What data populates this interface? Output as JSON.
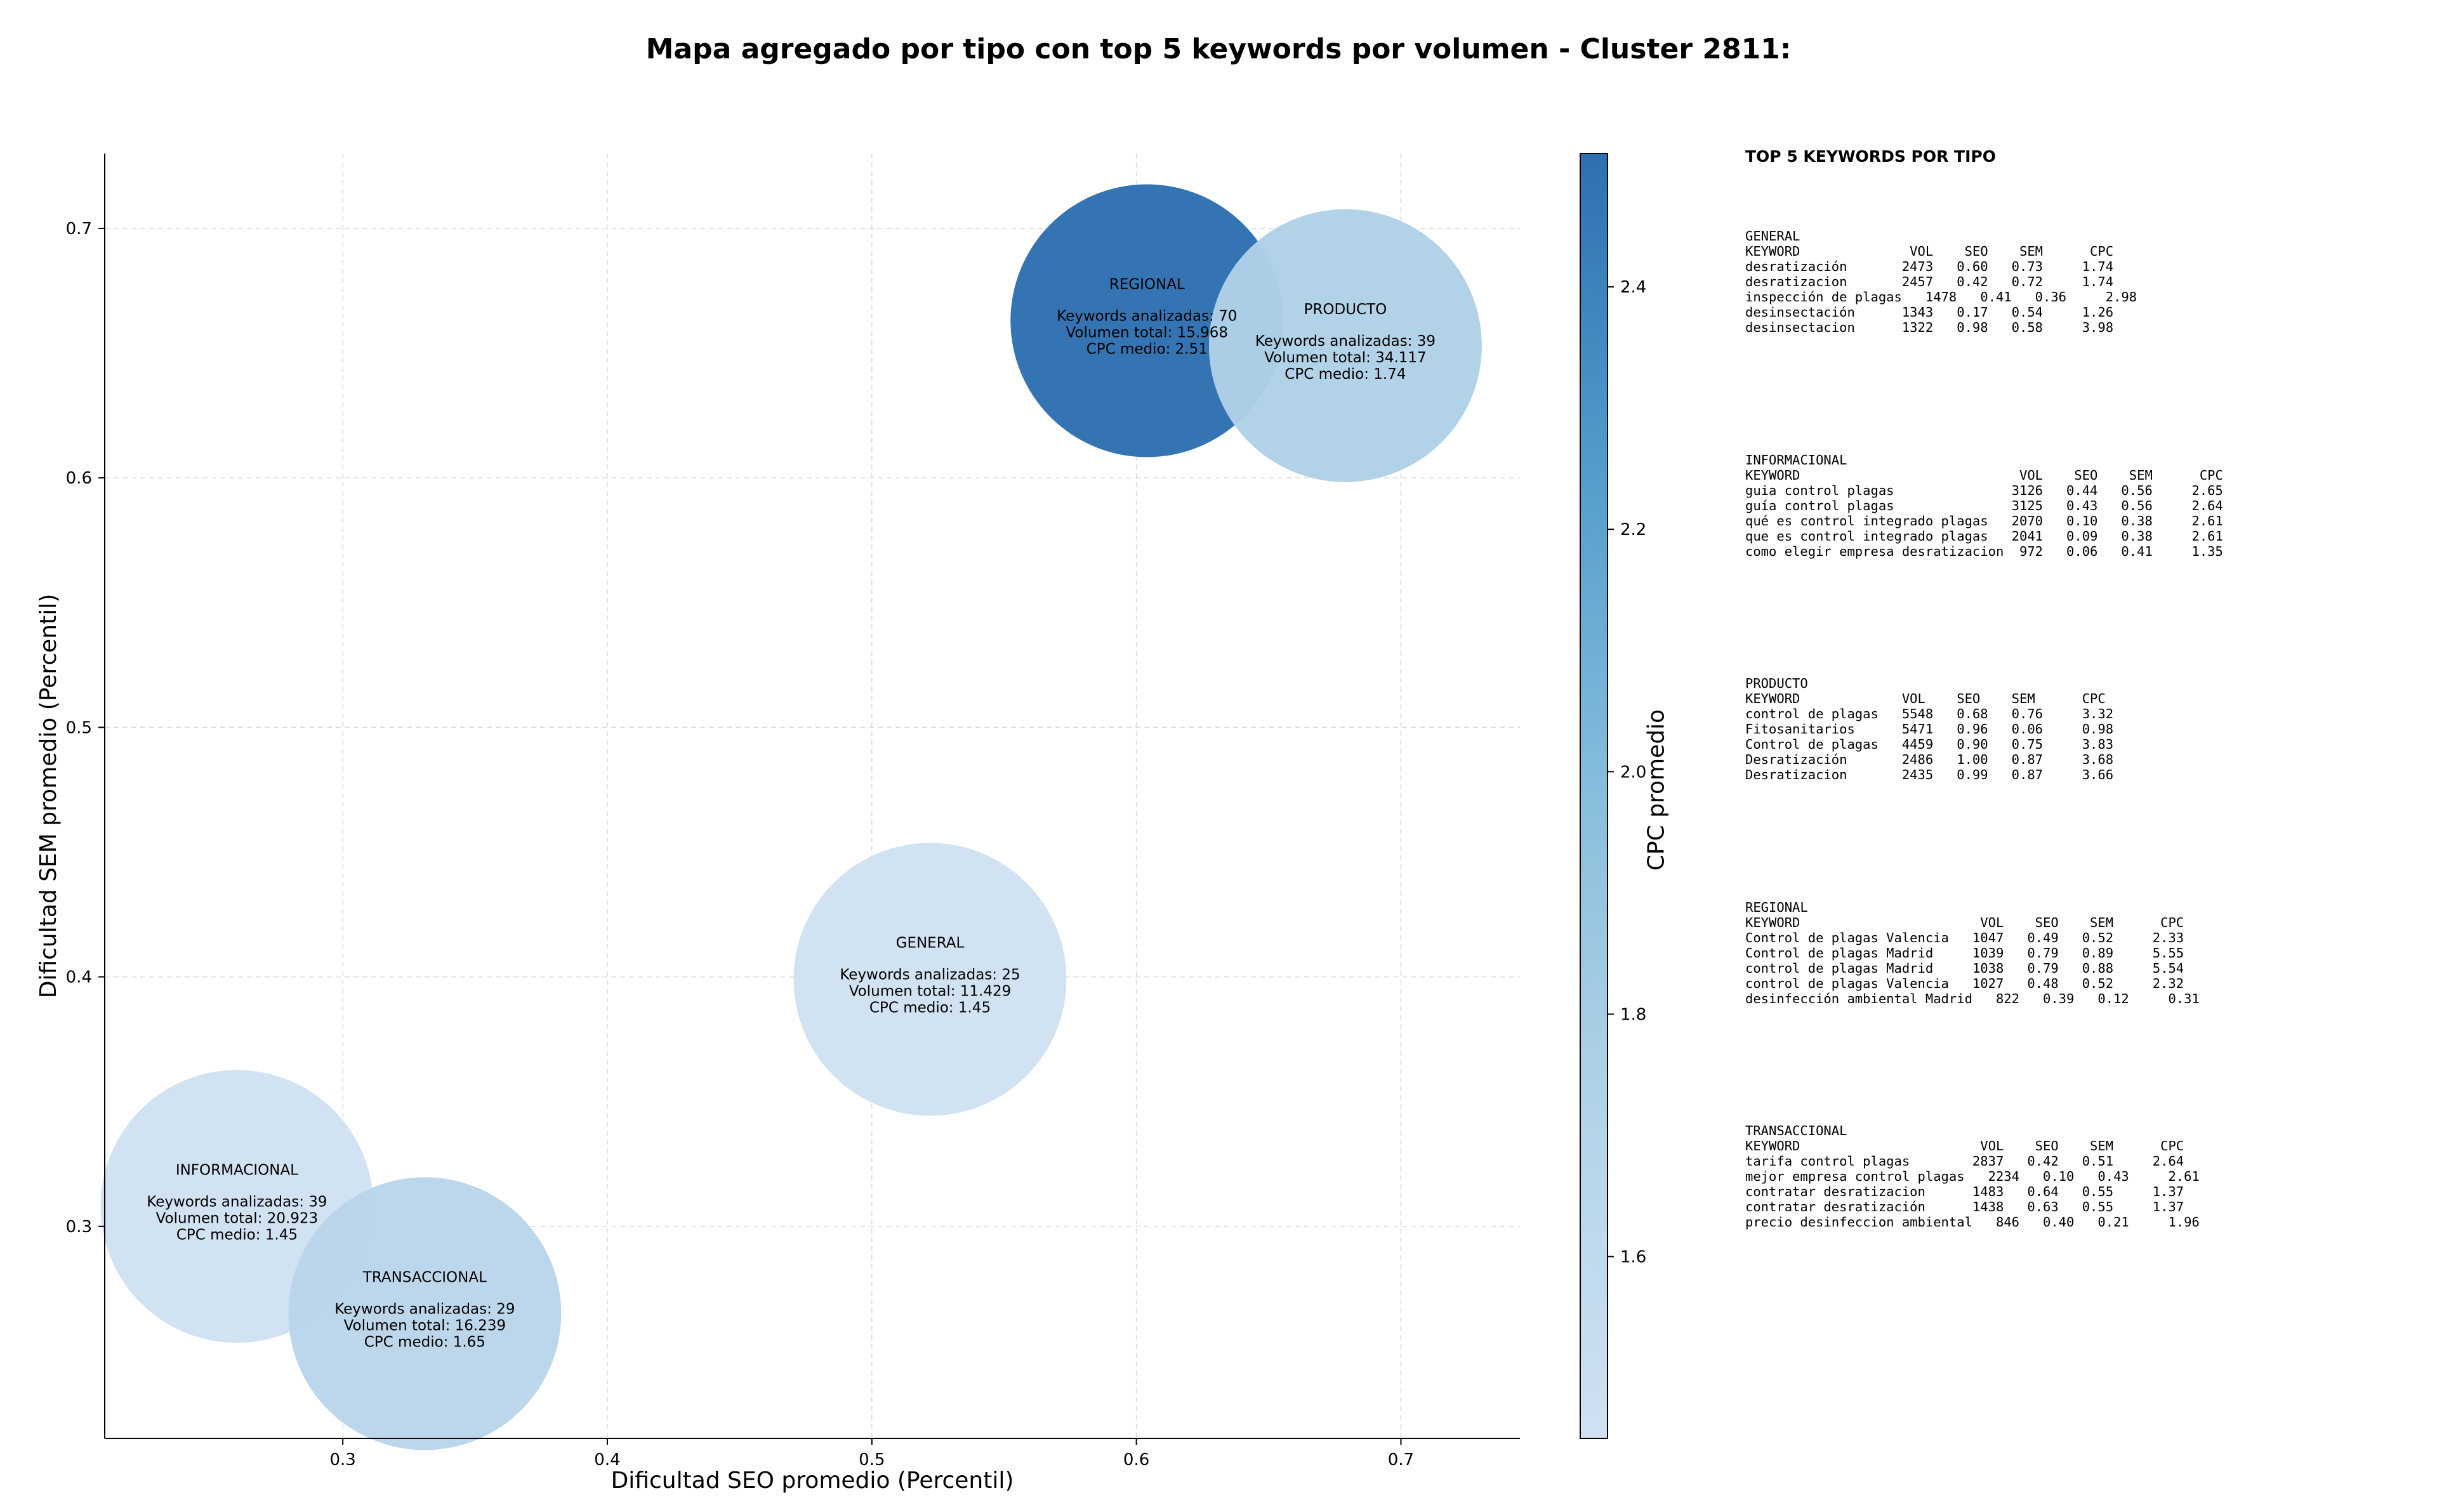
{
  "chart_data": {
    "type": "scatter",
    "title": "Mapa agregado por tipo con top 5 keywords por volumen - Cluster 2811:",
    "xlabel": "Dificultad SEO promedio (Percentil)",
    "ylabel": "Dificultad SEM promedio (Percentil)",
    "xlim": [
      0.21,
      0.745
    ],
    "ylim": [
      0.215,
      0.73
    ],
    "xticks": [
      "0.3",
      "0.4",
      "0.5",
      "0.6",
      "0.7"
    ],
    "yticks": [
      "0.3",
      "0.4",
      "0.5",
      "0.6",
      "0.7"
    ],
    "xtick_values": [
      0.3,
      0.4,
      0.5,
      0.6,
      0.7
    ],
    "ytick_values": [
      0.3,
      0.4,
      0.5,
      0.6,
      0.7
    ],
    "grid": true,
    "colorbar": {
      "label": "CPC promedio",
      "range": [
        1.45,
        2.51
      ],
      "ticks": [
        "1.6",
        "1.8",
        "2.0",
        "2.2",
        "2.4"
      ],
      "tick_values": [
        1.6,
        1.8,
        2.0,
        2.2,
        2.4
      ]
    },
    "bubbles": [
      {
        "name": "REGIONAL",
        "x": 0.604,
        "y": 0.663,
        "cpc": 2.51,
        "lines": [
          "Keywords analizadas: 70",
          "Volumen total: 15.968",
          "CPC medio: 2.51"
        ]
      },
      {
        "name": "PRODUCTO",
        "x": 0.679,
        "y": 0.653,
        "cpc": 1.74,
        "lines": [
          "Keywords analizadas: 39",
          "Volumen total: 34.117",
          "CPC medio: 1.74"
        ]
      },
      {
        "name": "GENERAL",
        "x": 0.522,
        "y": 0.399,
        "cpc": 1.45,
        "lines": [
          "Keywords analizadas: 25",
          "Volumen total: 11.429",
          "CPC medio: 1.45"
        ]
      },
      {
        "name": "INFORMACIONAL",
        "x": 0.26,
        "y": 0.308,
        "cpc": 1.45,
        "lines": [
          "Keywords analizadas: 39",
          "Volumen total: 20.923",
          "CPC medio: 1.45"
        ]
      },
      {
        "name": "TRANSACCIONAL",
        "x": 0.331,
        "y": 0.265,
        "cpc": 1.65,
        "lines": [
          "Keywords analizadas: 29",
          "Volumen total: 16.239",
          "CPC medio: 1.65"
        ]
      }
    ]
  },
  "side_panel": {
    "title": "TOP 5 KEYWORDS POR TIPO",
    "groups": [
      {
        "name": "GENERAL",
        "text": "GENERAL\nKEYWORD              VOL    SEO    SEM      CPC\ndesratización       2473   0.60   0.73     1.74\ndesratizacion       2457   0.42   0.72     1.74\ninspección de plagas   1478   0.41   0.36     2.98\ndesinsectación      1343   0.17   0.54     1.26\ndesinsectacion      1322   0.98   0.58     3.98"
      },
      {
        "name": "INFORMACIONAL",
        "text": "INFORMACIONAL\nKEYWORD                            VOL    SEO    SEM      CPC\nguia control plagas               3126   0.44   0.56     2.65\nguía control plagas               3125   0.43   0.56     2.64\nqué es control integrado plagas   2070   0.10   0.38     2.61\nque es control integrado plagas   2041   0.09   0.38     2.61\ncomo elegir empresa desratizacion  972   0.06   0.41     1.35"
      },
      {
        "name": "PRODUCTO",
        "text": "PRODUCTO\nKEYWORD             VOL    SEO    SEM      CPC\ncontrol de plagas   5548   0.68   0.76     3.32\nFitosanitarios      5471   0.96   0.06     0.98\nControl de plagas   4459   0.90   0.75     3.83\nDesratización       2486   1.00   0.87     3.68\nDesratizacion       2435   0.99   0.87     3.66"
      },
      {
        "name": "REGIONAL",
        "text": "REGIONAL\nKEYWORD                       VOL    SEO    SEM      CPC\nControl de plagas Valencia   1047   0.49   0.52     2.33\nControl de plagas Madrid     1039   0.79   0.89     5.55\ncontrol de plagas Madrid     1038   0.79   0.88     5.54\ncontrol de plagas Valencia   1027   0.48   0.52     2.32\ndesinfección ambiental Madrid   822   0.39   0.12     0.31"
      },
      {
        "name": "TRANSACCIONAL",
        "text": "TRANSACCIONAL\nKEYWORD                       VOL    SEO    SEM      CPC\ntarifa control plagas        2837   0.42   0.51     2.64\nmejor empresa control plagas   2234   0.10   0.43     2.61\ncontratar desratizacion      1483   0.64   0.55     1.37\ncontratar desratización      1438   0.63   0.55     1.37\nprecio desinfeccion ambiental   846   0.40   0.21     1.96"
      }
    ]
  }
}
